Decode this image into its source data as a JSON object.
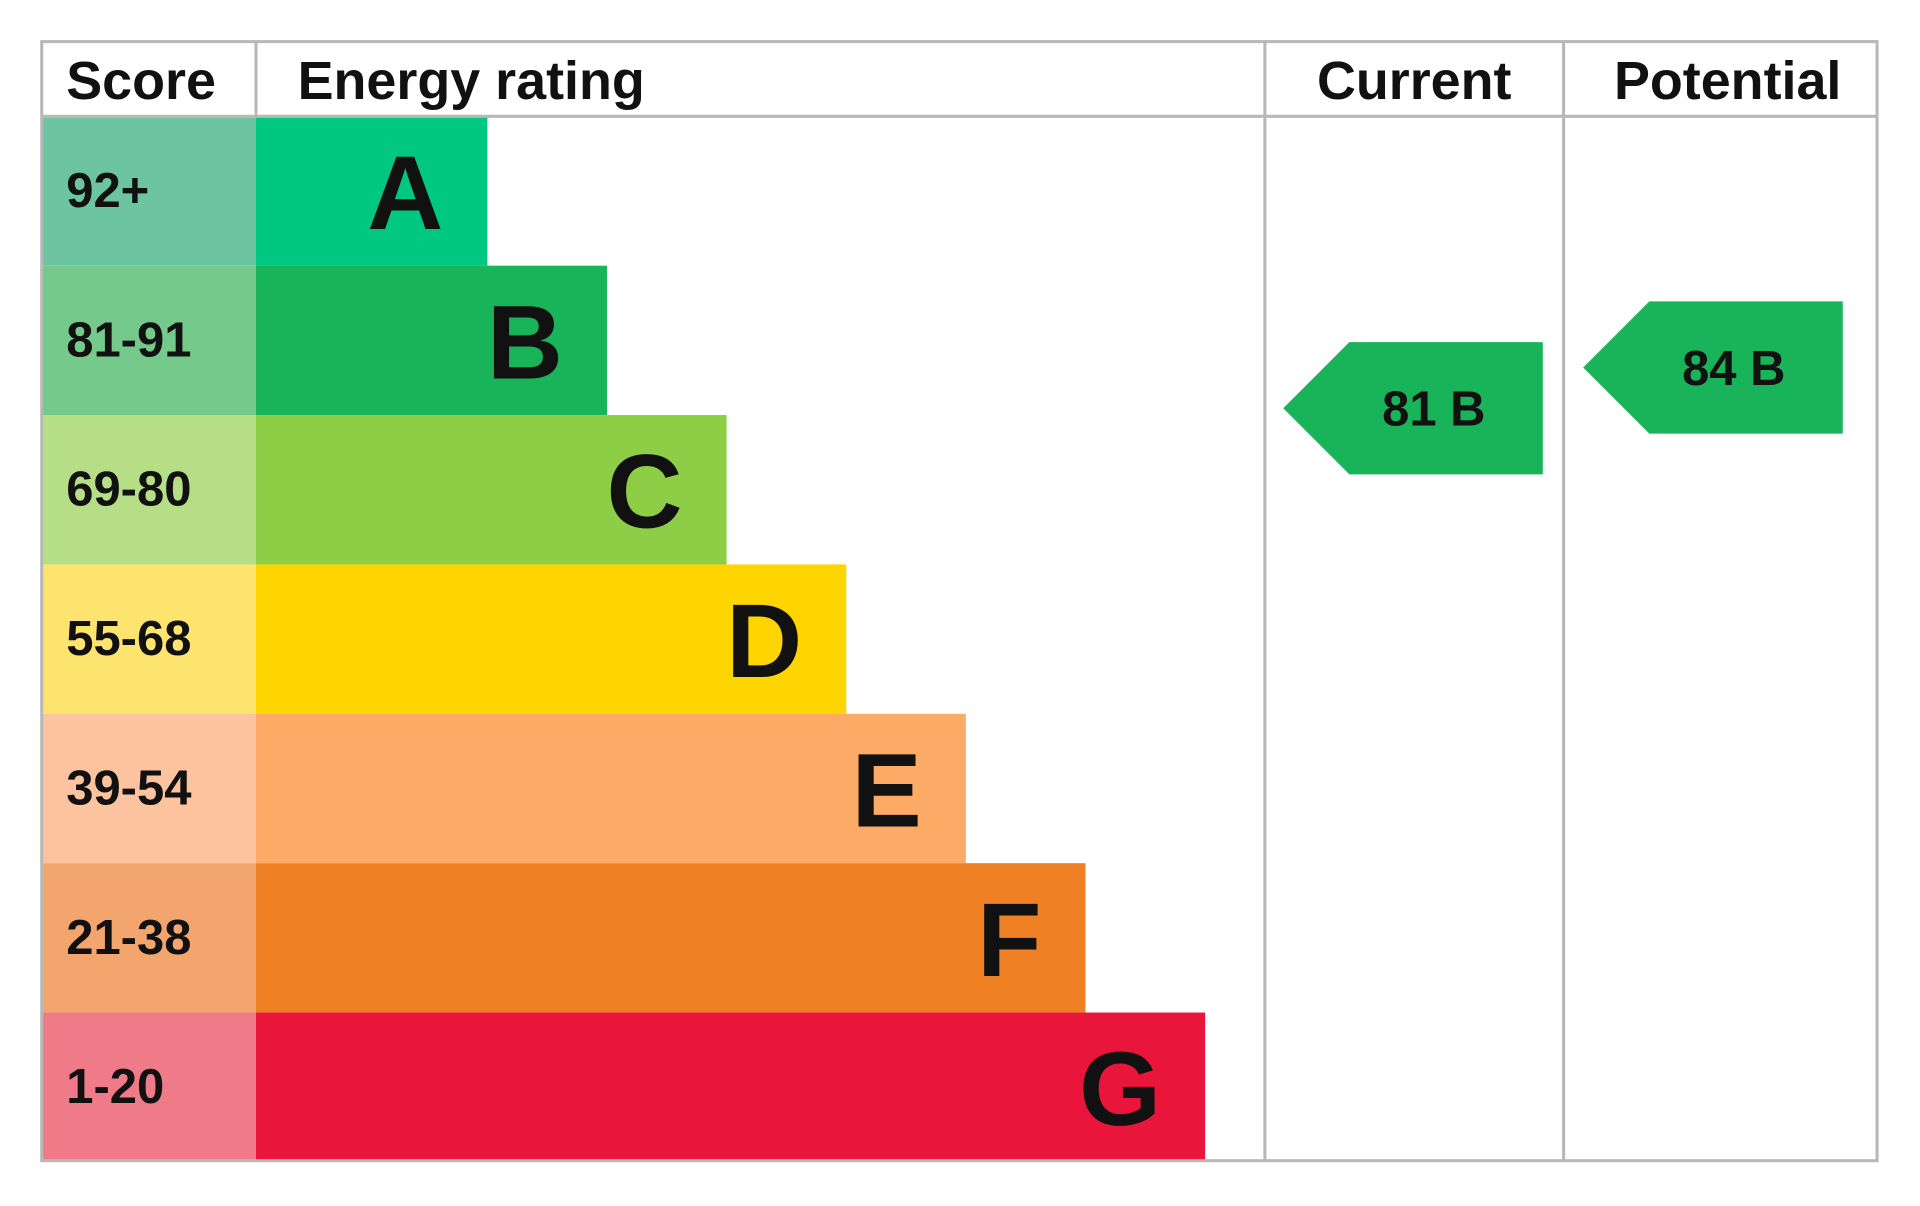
{
  "chart_data": {
    "type": "epc",
    "headers": {
      "score": "Score",
      "rating": "Energy rating",
      "current": "Current",
      "potential": "Potential"
    },
    "bands": [
      {
        "score": "92+",
        "letter": "A",
        "color": "#00c781",
        "score_color": "#6cc5a0"
      },
      {
        "score": "81-91",
        "letter": "B",
        "color": "#19b459",
        "score_color": "#74c98b"
      },
      {
        "score": "69-80",
        "letter": "C",
        "color": "#8dce46",
        "score_color": "#b5de86"
      },
      {
        "score": "55-68",
        "letter": "D",
        "color": "#ffd500",
        "score_color": "#fde46f"
      },
      {
        "score": "39-54",
        "letter": "E",
        "color": "#fcaa65",
        "score_color": "#fcc39e"
      },
      {
        "score": "21-38",
        "letter": "F",
        "color": "#ef8023",
        "score_color": "#f2a66d"
      },
      {
        "score": "1-20",
        "letter": "G",
        "color": "#e9153b",
        "score_color": "#ef7a88"
      }
    ],
    "current": {
      "value": 81,
      "value_label": "81 B",
      "color": "#19b459"
    },
    "potential": {
      "value": 84,
      "value_label": "84 B",
      "color": "#19b459"
    }
  }
}
